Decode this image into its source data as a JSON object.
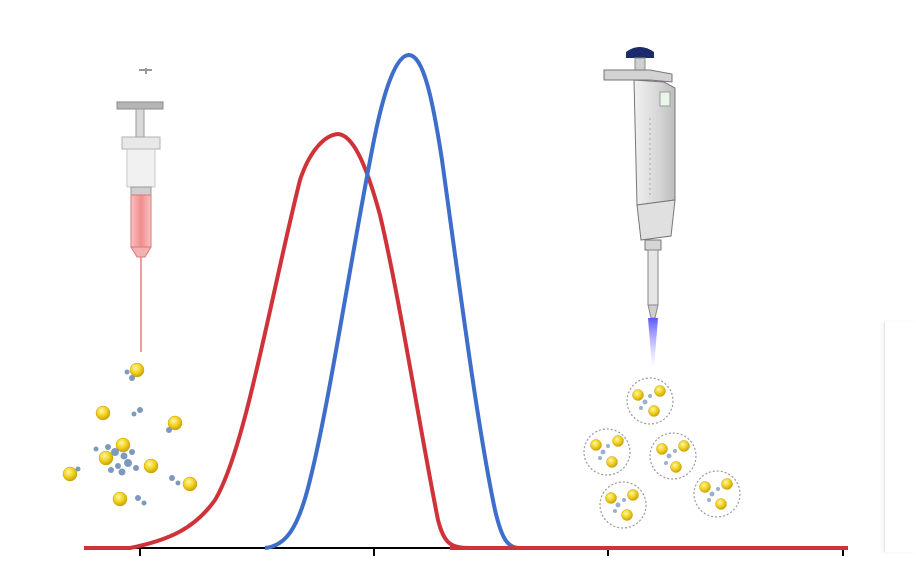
{
  "diagram": {
    "colors": {
      "red_curve": "#d0323a",
      "blue_curve": "#3d6ec9",
      "axis": "#000000",
      "particle_core": "#f2d21c",
      "ligand": "#6f8fb8",
      "syringe_fluid": "#f29a9a",
      "pipette_body": "#dcdcdc",
      "pipette_plunger": "#1b2a6b",
      "pipette_tip_glow": "#6f6cff"
    },
    "syringe": {
      "icon": "syringe-icon"
    },
    "pipette": {
      "icon": "micropipette-icon"
    },
    "left_cluster": {
      "icon": "scattered-nanoparticles"
    },
    "right_cluster": {
      "icon": "encapsulated-nanoparticles"
    }
  }
}
